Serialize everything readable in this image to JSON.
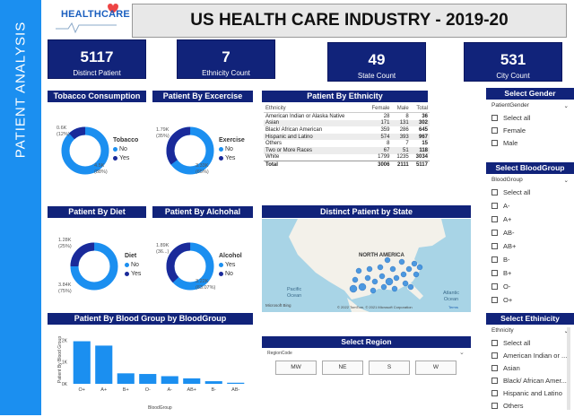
{
  "sidebar": {
    "title": "PATIENT ANALYSIS"
  },
  "logo": {
    "text": "HEALTHCARE"
  },
  "header": {
    "title": "US HEALTH CARE INDUSTRY - 2019-20"
  },
  "kpis": [
    {
      "value": "5117",
      "label": "Distinct Patient"
    },
    {
      "value": "7",
      "label": "Ethnicity Count"
    },
    {
      "value": "49",
      "label": "State Count"
    },
    {
      "value": "531",
      "label": "City Count"
    }
  ],
  "tobacco": {
    "title": "Tobacco Consumption",
    "legend_title": "Tobacco",
    "legend": [
      "No",
      "Yes"
    ],
    "label_small": "0.6K",
    "label_small_pct": "(12%)",
    "label_big": "4.5K",
    "label_big_pct": "(88%)",
    "fraction_small": 0.12
  },
  "exercise": {
    "title": "Patient By Excercise",
    "legend_title": "Exercise",
    "legend": [
      "No",
      "Yes"
    ],
    "label_small": "1.79K",
    "label_small_pct": "(35%)",
    "label_big": "3.33K",
    "label_big_pct": "(65%)",
    "fraction_small": 0.35
  },
  "diet": {
    "title": "Patient By Diet",
    "legend_title": "Diet",
    "legend": [
      "No",
      "Yes"
    ],
    "label_small": "1.28K",
    "label_small_pct": "(25%)",
    "label_big": "3.84K",
    "label_big_pct": "(75%)",
    "fraction_small": 0.25
  },
  "alcohol": {
    "title": "Patient By Alchohal",
    "legend_title": "Alcohol",
    "legend": [
      "Yes",
      "No"
    ],
    "label_small": "1.89K",
    "label_small_pct": "(36...)",
    "label_big": "3.22K",
    "label_big_pct": "(63.07%)",
    "fraction_small": 0.37
  },
  "ethnicity": {
    "title": "Patient By Ethnicity",
    "columns": [
      "Ethnicity",
      "Female",
      "Male",
      "Total"
    ],
    "rows": [
      [
        "American Indian or Alaska Native",
        "28",
        "8",
        "36"
      ],
      [
        "Asian",
        "171",
        "131",
        "302"
      ],
      [
        "Black/ African American",
        "359",
        "286",
        "645"
      ],
      [
        "Hispanic and Latino",
        "574",
        "393",
        "967"
      ],
      [
        "Others",
        "8",
        "7",
        "15"
      ],
      [
        "Two or More Races",
        "67",
        "51",
        "118"
      ],
      [
        "White",
        "1799",
        "1235",
        "3034"
      ]
    ],
    "total": [
      "Total",
      "3006",
      "2111",
      "5117"
    ]
  },
  "map": {
    "title": "Distinct Patient by State",
    "continent": "NORTH AMERICA",
    "pacific": "Pacific",
    "pacific2": "Ocean",
    "atlantic": "Atlantic",
    "atlantic2": "Ocean",
    "brand": "Microsoft Bing",
    "credit": "© 2022 TomTom, © 2021 Microsoft Corporation",
    "terms": "Terms"
  },
  "bloodchart": {
    "title": "Patient By Blood Group by BloodGroup",
    "ylabel": "Patient By Blood Group",
    "xlabel": "BloodGroup",
    "yticks": [
      "0K",
      "1K",
      "2K"
    ]
  },
  "chart_data": {
    "type": "bar",
    "title": "Patient By Blood Group by BloodGroup",
    "xlabel": "BloodGroup",
    "ylabel": "Patient By Blood Group",
    "categories": [
      "O+",
      "A+",
      "B+",
      "O-",
      "A-",
      "AB+",
      "B-",
      "AB-"
    ],
    "values": [
      1950,
      1750,
      480,
      450,
      350,
      250,
      120,
      50
    ],
    "ylim": [
      0,
      2300
    ],
    "grid": false
  },
  "region": {
    "title": "Select Region",
    "field": "RegionCode",
    "options": [
      "MW",
      "NE",
      "S",
      "W"
    ]
  },
  "gender_slicer": {
    "title": "Select Gender",
    "field": "PatientGender",
    "items": [
      "Select all",
      "Female",
      "Male"
    ]
  },
  "blood_slicer": {
    "title": "Select BloodGroup",
    "field": "BloodGroup",
    "items": [
      "Select all",
      "A-",
      "A+",
      "AB-",
      "AB+",
      "B-",
      "B+",
      "O-",
      "O+"
    ]
  },
  "ethnicity_slicer": {
    "title": "Select Ethinicity",
    "field": "Ethnicity",
    "items": [
      "Select all",
      "American Indian or ...",
      "Asian",
      "Black/ African Amer...",
      "Hispanic and Latino",
      "Others"
    ]
  },
  "colors": {
    "navy": "#11237a",
    "blue": "#1b8ff0",
    "dark": "#1a2a9a"
  }
}
